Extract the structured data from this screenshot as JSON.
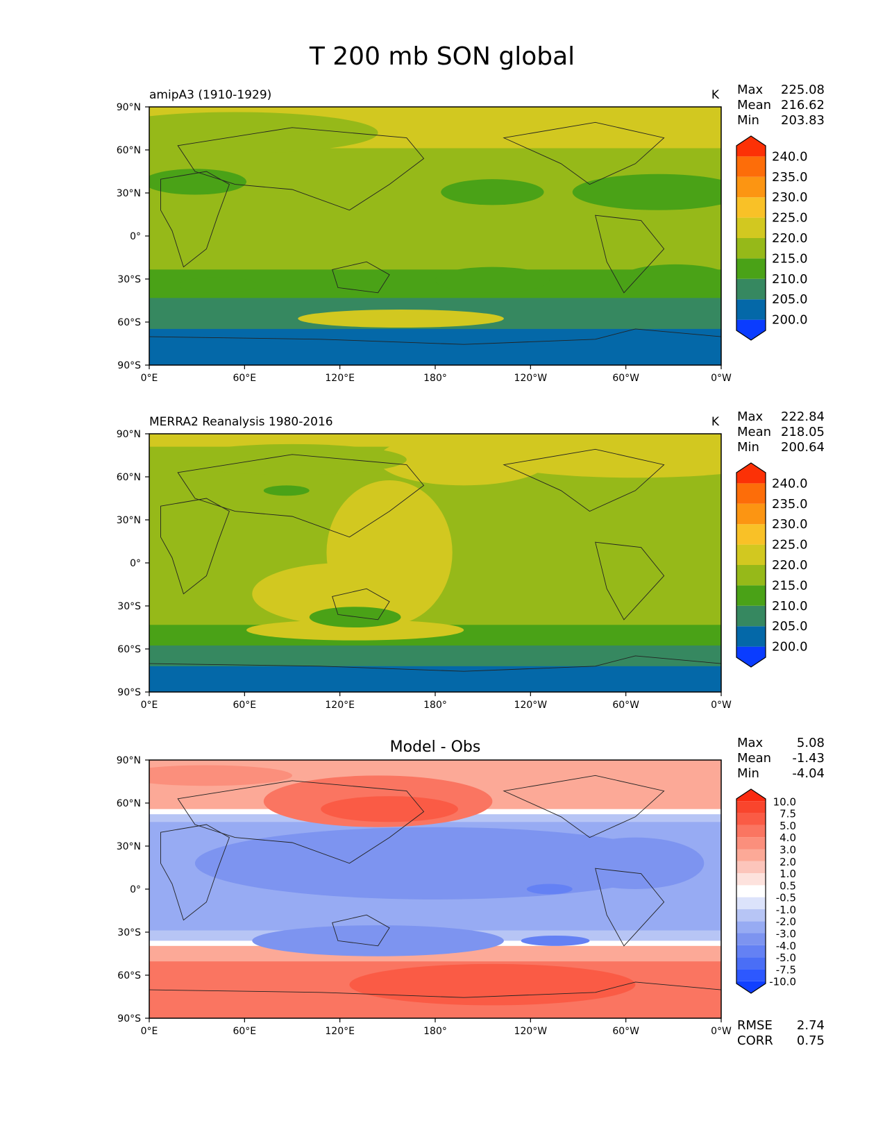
{
  "figure": {
    "title": "T 200 mb SON global"
  },
  "axes": {
    "lat_ticks": [
      "90°N",
      "60°N",
      "30°N",
      "0°",
      "30°S",
      "60°S",
      "90°S"
    ],
    "lon_ticks": [
      "0°E",
      "60°E",
      "120°E",
      "180°",
      "120°W",
      "60°W",
      "0°W"
    ]
  },
  "chart_data": [
    {
      "type": "heatmap",
      "title": "amipA3 (1910-1929)",
      "units": "K",
      "stats": {
        "Max": "225.08",
        "Mean": "216.62",
        "Min": "203.83"
      },
      "colorbar": {
        "levels": [
          "200.0",
          "205.0",
          "210.0",
          "215.0",
          "220.0",
          "225.0",
          "230.0",
          "235.0",
          "240.0"
        ],
        "colors": [
          "#0a3cff",
          "#0468a8",
          "#368860",
          "#4aa217",
          "#96b919",
          "#d2c820",
          "#f9c127",
          "#fc9512",
          "#fd6d09",
          "#fc3106"
        ]
      },
      "xlim": [
        0,
        360
      ],
      "ylim": [
        -90,
        90
      ]
    },
    {
      "type": "heatmap",
      "title": "MERRA2 Reanalysis 1980-2016",
      "units": "K",
      "stats": {
        "Max": "222.84",
        "Mean": "218.05",
        "Min": "200.64"
      },
      "colorbar": {
        "levels": [
          "200.0",
          "205.0",
          "210.0",
          "215.0",
          "220.0",
          "225.0",
          "230.0",
          "235.0",
          "240.0"
        ],
        "colors": [
          "#0a3cff",
          "#0468a8",
          "#368860",
          "#4aa217",
          "#96b919",
          "#d2c820",
          "#f9c127",
          "#fc9512",
          "#fd6d09",
          "#fc3106"
        ]
      },
      "xlim": [
        0,
        360
      ],
      "ylim": [
        -90,
        90
      ]
    },
    {
      "type": "heatmap",
      "title": "Model - Obs",
      "stats": {
        "Max": "5.08",
        "Mean": "-1.43",
        "Min": "-4.04"
      },
      "metrics": {
        "RMSE": "2.74",
        "CORR": "0.75"
      },
      "colorbar": {
        "levels": [
          "-10.0",
          "-7.5",
          "-5.0",
          "-4.0",
          "-3.0",
          "-2.0",
          "-1.0",
          "-0.5",
          "0.5",
          "1.0",
          "2.0",
          "3.0",
          "4.0",
          "5.0",
          "7.5",
          "10.0"
        ],
        "colors": [
          "#1040ff",
          "#2d58ff",
          "#4a6ef6",
          "#6481f4",
          "#7d94f0",
          "#97abf3",
          "#b7c5f5",
          "#dce3fb",
          "#ffffff",
          "#fde2dd",
          "#fcc5bb",
          "#fca997",
          "#fb8f7c",
          "#fa7561",
          "#fa5b45",
          "#f9452d",
          "#f92a10"
        ]
      },
      "xlim": [
        0,
        360
      ],
      "ylim": [
        -90,
        90
      ]
    }
  ]
}
